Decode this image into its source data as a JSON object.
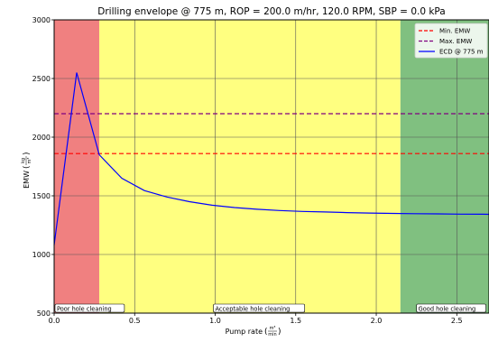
{
  "chart_data": {
    "type": "line",
    "title": "Drilling envelope @ 775 m, ROP = 200.0 m/hr, 120.0 RPM, SBP = 0.0 kPa",
    "xlabel": "Pump rate",
    "xlabel_unit_num": "m³",
    "xlabel_unit_den": "min",
    "ylabel": "EMW",
    "ylabel_unit_num": "kg",
    "ylabel_unit_den": "m³",
    "xlim": [
      0.0,
      2.7
    ],
    "ylim": [
      500,
      3000
    ],
    "x_ticks": [
      "0.0",
      "0.5",
      "1.0",
      "1.5",
      "2.0",
      "2.5"
    ],
    "x_tick_values": [
      0.0,
      0.5,
      1.0,
      1.5,
      2.0,
      2.5
    ],
    "y_ticks": [
      "500",
      "1000",
      "1500",
      "2000",
      "2500",
      "3000"
    ],
    "y_tick_values": [
      500,
      1000,
      1500,
      2000,
      2500,
      3000
    ],
    "grid": true,
    "legend_position": "top-right",
    "zones": [
      {
        "label": "Poor hole cleaning",
        "x_from": 0.0,
        "x_to": 0.28,
        "color": "#f08080"
      },
      {
        "label": "Acceptable hole cleaning",
        "x_from": 0.28,
        "x_to": 2.15,
        "color": "#ffff80"
      },
      {
        "label": "Good hole cleaning",
        "x_from": 2.15,
        "x_to": 2.7,
        "color": "#80c080"
      }
    ],
    "hlines": [
      {
        "name": "Min. EMW",
        "y": 1860,
        "color": "#ff0000"
      },
      {
        "name": "Max. EMW",
        "y": 2200,
        "color": "#800080"
      }
    ],
    "series": [
      {
        "name": "ECD @ 775 m",
        "color": "#0000ff",
        "x": [
          0.0,
          0.14,
          0.28,
          0.42,
          0.56,
          0.7,
          0.84,
          0.98,
          1.12,
          1.26,
          1.4,
          1.54,
          1.68,
          1.82,
          1.96,
          2.1,
          2.24,
          2.38,
          2.52,
          2.66,
          2.7
        ],
        "y": [
          1080,
          2550,
          1850,
          1650,
          1545,
          1490,
          1450,
          1420,
          1400,
          1385,
          1375,
          1367,
          1362,
          1357,
          1353,
          1350,
          1348,
          1346,
          1344,
          1343,
          1342
        ]
      }
    ]
  }
}
